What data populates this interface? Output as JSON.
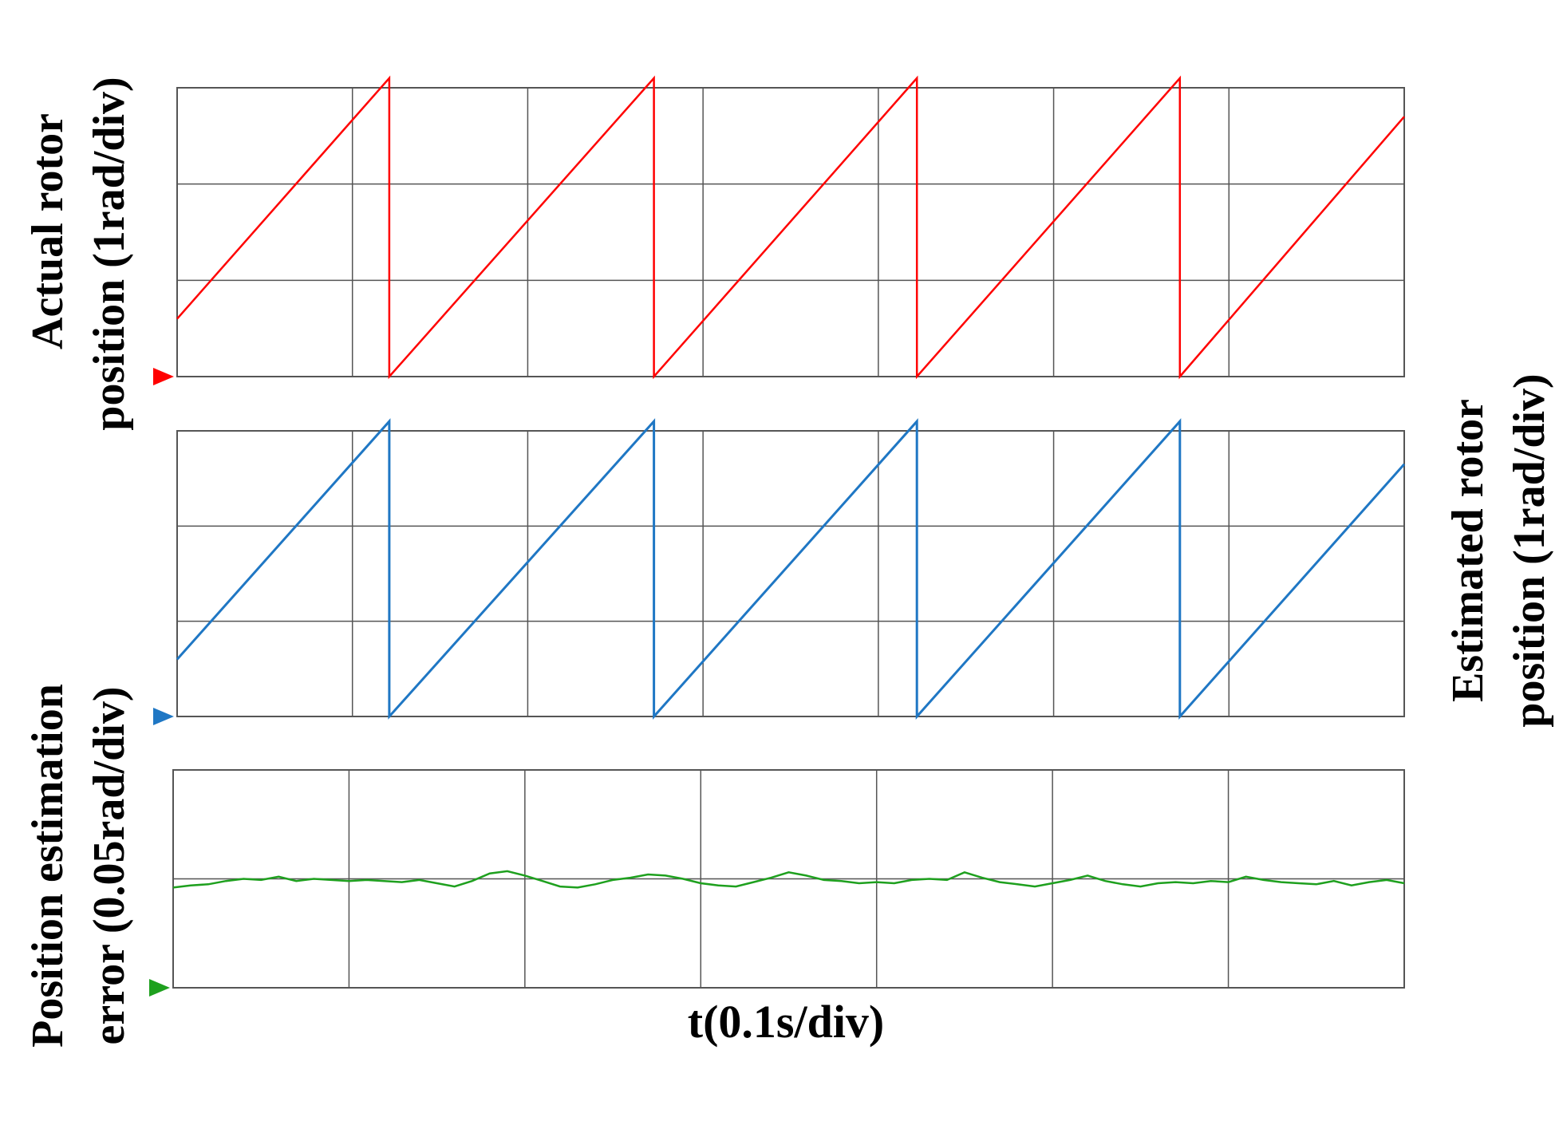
{
  "chart_data": [
    {
      "type": "line",
      "ylabel": [
        "Actual rotor",
        "position (1rad/div)"
      ],
      "color": "#ff0000",
      "x_divisions": 7,
      "y_divisions": 3,
      "series": [
        {
          "x": [
            0,
            1.21,
            1.21,
            2.72,
            2.72,
            4.22,
            4.22,
            5.72,
            5.72,
            7.0
          ],
          "y": [
            0.6,
            3.1,
            0.0,
            3.1,
            0.0,
            3.1,
            0.0,
            3.1,
            0.0,
            2.7
          ]
        }
      ]
    },
    {
      "type": "line",
      "ylabel": [
        "Estimated rotor",
        "position (1rad/div)"
      ],
      "color": "#1f77c4",
      "x_divisions": 7,
      "y_divisions": 3,
      "series": [
        {
          "x": [
            0,
            1.21,
            1.21,
            2.72,
            2.72,
            4.22,
            4.22,
            5.72,
            5.72,
            7.0
          ],
          "y": [
            0.6,
            3.1,
            0.0,
            3.1,
            0.0,
            3.1,
            0.0,
            3.1,
            0.0,
            2.65
          ]
        }
      ]
    },
    {
      "type": "line",
      "ylabel": [
        "Position estimation",
        "error (0.05rad/div)"
      ],
      "xlabel": "t(0.1s/div)",
      "color": "#1ea01e",
      "x_divisions": 7,
      "y_divisions": 2,
      "series": [
        {
          "x": [
            0,
            0.1,
            0.2,
            0.3,
            0.4,
            0.5,
            0.6,
            0.7,
            0.8,
            0.9,
            1.0,
            1.1,
            1.2,
            1.3,
            1.4,
            1.5,
            1.6,
            1.7,
            1.8,
            1.9,
            2.0,
            2.1,
            2.2,
            2.3,
            2.4,
            2.5,
            2.6,
            2.7,
            2.8,
            2.9,
            3.0,
            3.1,
            3.2,
            3.3,
            3.4,
            3.5,
            3.6,
            3.7,
            3.8,
            3.9,
            4.0,
            4.1,
            4.2,
            4.3,
            4.4,
            4.5,
            4.6,
            4.7,
            4.8,
            4.9,
            5.0,
            5.1,
            5.2,
            5.3,
            5.4,
            5.5,
            5.6,
            5.7,
            5.8,
            5.9,
            6.0,
            6.1,
            6.2,
            6.3,
            6.4,
            6.5,
            6.6,
            6.7,
            6.8,
            6.9,
            7.0
          ],
          "y": [
            0.92,
            0.94,
            0.95,
            0.98,
            1.0,
            0.99,
            1.02,
            0.98,
            1.0,
            0.99,
            0.98,
            0.99,
            0.98,
            0.97,
            0.99,
            0.96,
            0.93,
            0.98,
            1.05,
            1.07,
            1.03,
            0.98,
            0.93,
            0.92,
            0.95,
            0.99,
            1.01,
            1.04,
            1.03,
            1.0,
            0.96,
            0.94,
            0.93,
            0.97,
            1.01,
            1.06,
            1.03,
            0.99,
            0.98,
            0.96,
            0.97,
            0.96,
            0.99,
            1.0,
            0.99,
            1.06,
            1.01,
            0.97,
            0.95,
            0.93,
            0.96,
            0.99,
            1.03,
            0.98,
            0.95,
            0.93,
            0.96,
            0.97,
            0.96,
            0.98,
            0.97,
            1.02,
            0.99,
            0.97,
            0.96,
            0.95,
            0.98,
            0.94,
            0.97,
            0.99,
            0.96
          ]
        }
      ]
    }
  ]
}
